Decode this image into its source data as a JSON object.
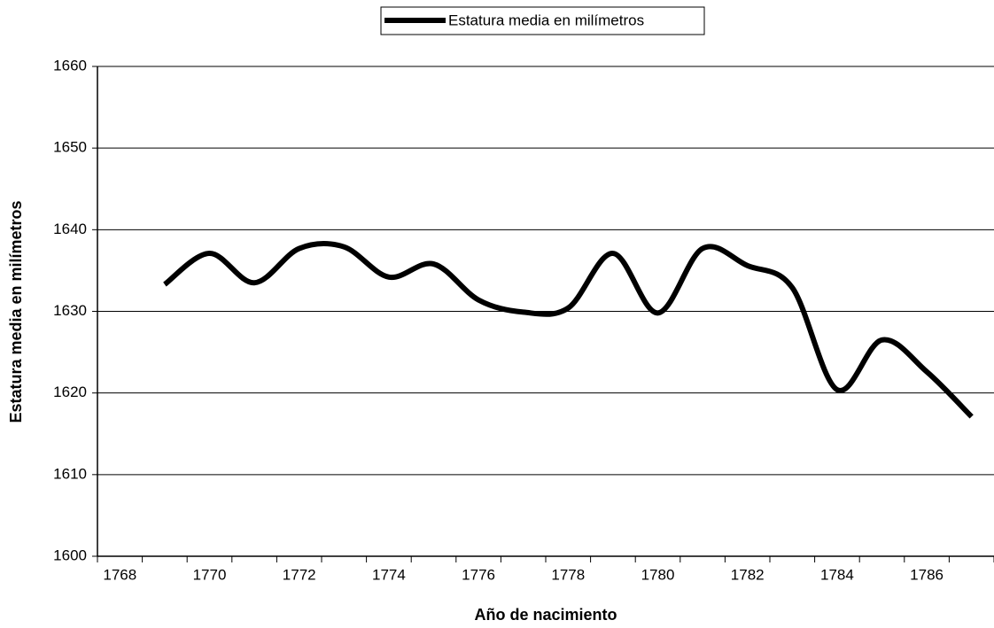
{
  "chart_data": {
    "type": "line",
    "x_label": "Año de nacimiento",
    "y_label": "Estatura media en milímetros",
    "categories": [
      "1768",
      null,
      "1770",
      null,
      "1772",
      null,
      "1774",
      null,
      "1776",
      null,
      "1778",
      null,
      "1780",
      null,
      "1782",
      null,
      "1784",
      null,
      "1786",
      null
    ],
    "series": [
      {
        "name": "Estatura media en milímetros",
        "color": "#000000",
        "values": [
          null,
          1633.3,
          1637.1,
          1633.5,
          1637.7,
          1637.9,
          1634.2,
          1635.8,
          1631.4,
          1629.9,
          1630.4,
          1637.1,
          1629.8,
          1637.7,
          1635.6,
          1632.9,
          1620.4,
          1626.5,
          1622.6,
          1617.1
        ]
      }
    ],
    "ylim": [
      1600,
      1660
    ],
    "yticks": [
      1600,
      1610,
      1620,
      1630,
      1640,
      1650,
      1660
    ],
    "grid": true,
    "legend": "top",
    "smooth": true
  }
}
